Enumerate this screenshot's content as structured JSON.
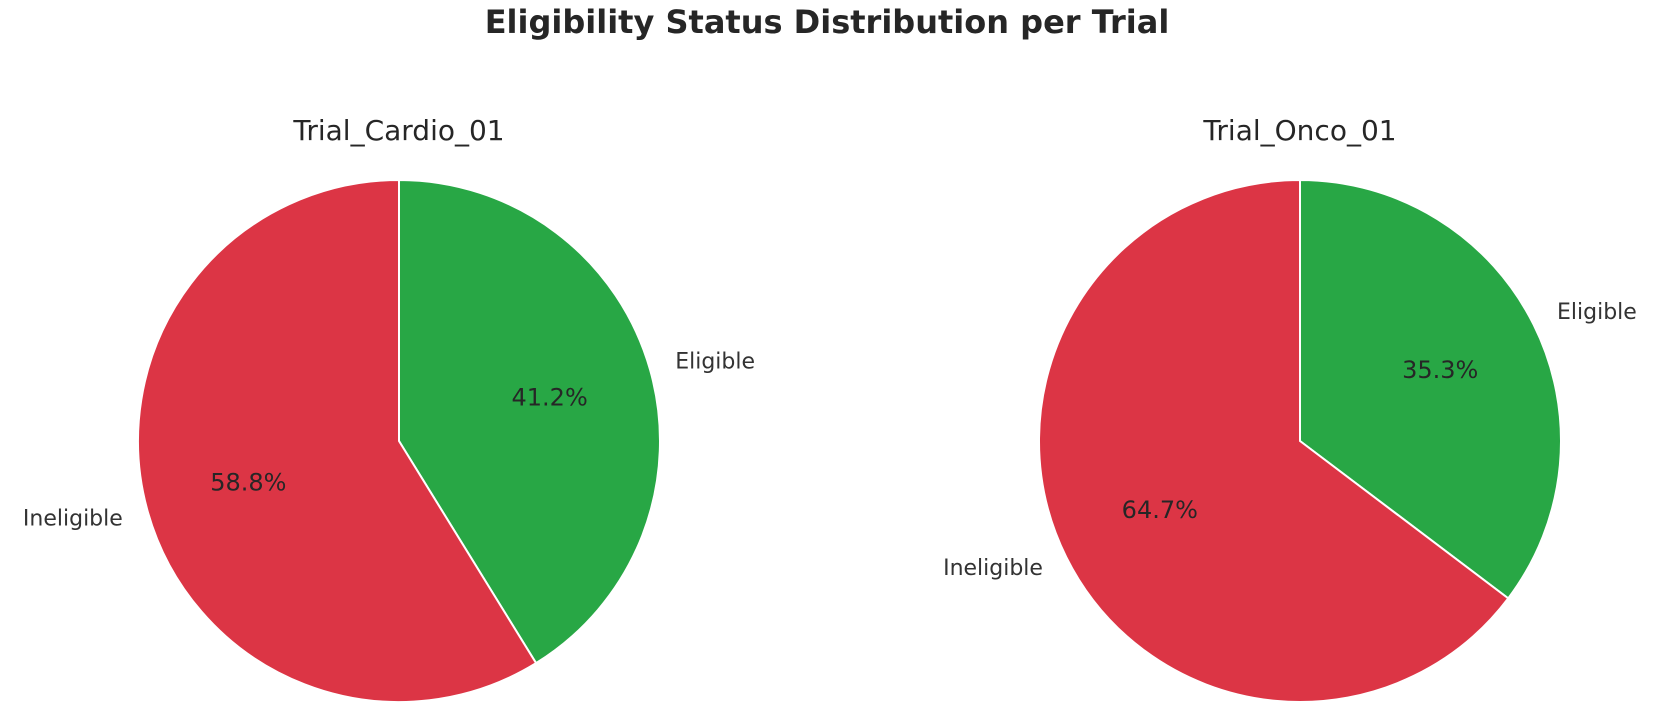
{
  "chart_data": {
    "title": "Eligibility Status Distribution per Trial",
    "type": "pie",
    "charts": [
      {
        "title": "Trial_Cardio_01",
        "slices": [
          {
            "label": "Eligible",
            "value": 41.2,
            "pct_label": "41.2%",
            "color": "#28a745"
          },
          {
            "label": "Ineligible",
            "value": 58.8,
            "pct_label": "58.8%",
            "color": "#dc3545"
          }
        ]
      },
      {
        "title": "Trial_Onco_01",
        "slices": [
          {
            "label": "Eligible",
            "value": 35.3,
            "pct_label": "35.3%",
            "color": "#28a745"
          },
          {
            "label": "Ineligible",
            "value": 64.7,
            "pct_label": "64.7%",
            "color": "#dc3545"
          }
        ]
      }
    ]
  }
}
